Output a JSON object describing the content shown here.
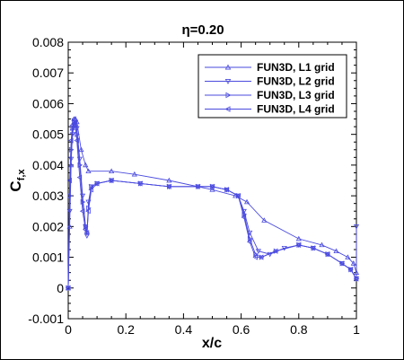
{
  "chart_data": {
    "type": "line",
    "title": "η=0.20",
    "xlabel": "x/c",
    "ylabel_main": "C",
    "ylabel_sub": "f,x",
    "xlim": [
      0,
      1
    ],
    "ylim": [
      -0.001,
      0.008
    ],
    "x_ticks": [
      "0",
      "0.2",
      "0.4",
      "0.6",
      "0.8",
      "1"
    ],
    "y_ticks": [
      "-0.001",
      "0",
      "0.001",
      "0.002",
      "0.003",
      "0.004",
      "0.005",
      "0.006",
      "0.007",
      "0.008"
    ],
    "grid": false,
    "legend_position": "top-right",
    "color": "#4a4adf",
    "series": [
      {
        "name": "FUN3D, L1 grid",
        "marker": "triangle-up",
        "points": [
          [
            0.0,
            0.0
          ],
          [
            0.005,
            0.002
          ],
          [
            0.01,
            0.004
          ],
          [
            0.015,
            0.0052
          ],
          [
            0.02,
            0.0055
          ],
          [
            0.025,
            0.0055
          ],
          [
            0.03,
            0.0054
          ],
          [
            0.045,
            0.0045
          ],
          [
            0.06,
            0.004
          ],
          [
            0.07,
            0.0038
          ],
          [
            0.15,
            0.0038
          ],
          [
            0.23,
            0.0037
          ],
          [
            0.35,
            0.0035
          ],
          [
            0.5,
            0.0032
          ],
          [
            0.58,
            0.003
          ],
          [
            0.62,
            0.0028
          ],
          [
            0.68,
            0.0022
          ],
          [
            0.8,
            0.0016
          ],
          [
            0.88,
            0.0014
          ],
          [
            0.93,
            0.0012
          ],
          [
            0.97,
            0.001
          ],
          [
            0.99,
            0.0008
          ],
          [
            1.0,
            0.0005
          ]
        ]
      },
      {
        "name": "FUN3D, L2 grid",
        "marker": "triangle-down",
        "points": [
          [
            0.0,
            0.0
          ],
          [
            0.005,
            0.0025
          ],
          [
            0.01,
            0.0042
          ],
          [
            0.015,
            0.005
          ],
          [
            0.02,
            0.0053
          ],
          [
            0.025,
            0.0054
          ],
          [
            0.03,
            0.0052
          ],
          [
            0.04,
            0.0042
          ],
          [
            0.05,
            0.003
          ],
          [
            0.06,
            0.002
          ],
          [
            0.065,
            0.0017
          ],
          [
            0.07,
            0.0028
          ],
          [
            0.08,
            0.0033
          ],
          [
            0.1,
            0.0034
          ],
          [
            0.15,
            0.0035
          ],
          [
            0.25,
            0.0034
          ],
          [
            0.35,
            0.0033
          ],
          [
            0.45,
            0.0033
          ],
          [
            0.5,
            0.0033
          ],
          [
            0.55,
            0.0032
          ],
          [
            0.59,
            0.003
          ],
          [
            0.61,
            0.0025
          ],
          [
            0.63,
            0.0018
          ],
          [
            0.66,
            0.0012
          ],
          [
            0.7,
            0.0011
          ],
          [
            0.75,
            0.0013
          ],
          [
            0.8,
            0.0014
          ],
          [
            0.85,
            0.0013
          ],
          [
            0.9,
            0.0011
          ],
          [
            0.95,
            0.0008
          ],
          [
            0.98,
            0.0006
          ],
          [
            1.0,
            0.0003
          ],
          [
            1.0,
            0.002
          ]
        ]
      },
      {
        "name": "FUN3D, L3 grid",
        "marker": "triangle-right",
        "points": [
          [
            0.0,
            0.0
          ],
          [
            0.005,
            0.003
          ],
          [
            0.01,
            0.0045
          ],
          [
            0.015,
            0.0052
          ],
          [
            0.02,
            0.0054
          ],
          [
            0.025,
            0.0053
          ],
          [
            0.03,
            0.005
          ],
          [
            0.04,
            0.004
          ],
          [
            0.05,
            0.0028
          ],
          [
            0.06,
            0.002
          ],
          [
            0.065,
            0.0018
          ],
          [
            0.07,
            0.0026
          ],
          [
            0.08,
            0.0033
          ],
          [
            0.1,
            0.0034
          ],
          [
            0.15,
            0.0035
          ],
          [
            0.25,
            0.0034
          ],
          [
            0.35,
            0.0033
          ],
          [
            0.45,
            0.0033
          ],
          [
            0.5,
            0.0033
          ],
          [
            0.55,
            0.0032
          ],
          [
            0.59,
            0.003
          ],
          [
            0.61,
            0.0024
          ],
          [
            0.63,
            0.0016
          ],
          [
            0.65,
            0.0011
          ],
          [
            0.67,
            0.001
          ],
          [
            0.72,
            0.0012
          ],
          [
            0.8,
            0.0014
          ],
          [
            0.85,
            0.0013
          ],
          [
            0.9,
            0.0011
          ],
          [
            0.95,
            0.0008
          ],
          [
            0.98,
            0.0006
          ],
          [
            1.0,
            0.0003
          ]
        ]
      },
      {
        "name": "FUN3D, L4 grid",
        "marker": "triangle-left",
        "points": [
          [
            0.0,
            0.0
          ],
          [
            0.005,
            0.0035
          ],
          [
            0.01,
            0.0048
          ],
          [
            0.015,
            0.0053
          ],
          [
            0.02,
            0.0055
          ],
          [
            0.025,
            0.0053
          ],
          [
            0.03,
            0.0048
          ],
          [
            0.04,
            0.0036
          ],
          [
            0.05,
            0.0025
          ],
          [
            0.06,
            0.0019
          ],
          [
            0.065,
            0.0018
          ],
          [
            0.07,
            0.0025
          ],
          [
            0.08,
            0.0032
          ],
          [
            0.1,
            0.0034
          ],
          [
            0.15,
            0.0035
          ],
          [
            0.25,
            0.0034
          ],
          [
            0.35,
            0.0033
          ],
          [
            0.45,
            0.0033
          ],
          [
            0.5,
            0.0033
          ],
          [
            0.55,
            0.0032
          ],
          [
            0.59,
            0.003
          ],
          [
            0.61,
            0.0023
          ],
          [
            0.63,
            0.0015
          ],
          [
            0.65,
            0.001
          ],
          [
            0.67,
            0.001
          ],
          [
            0.72,
            0.0012
          ],
          [
            0.8,
            0.0014
          ],
          [
            0.85,
            0.0013
          ],
          [
            0.9,
            0.0011
          ],
          [
            0.95,
            0.0008
          ],
          [
            0.98,
            0.0006
          ],
          [
            1.0,
            0.0003
          ]
        ]
      }
    ]
  }
}
